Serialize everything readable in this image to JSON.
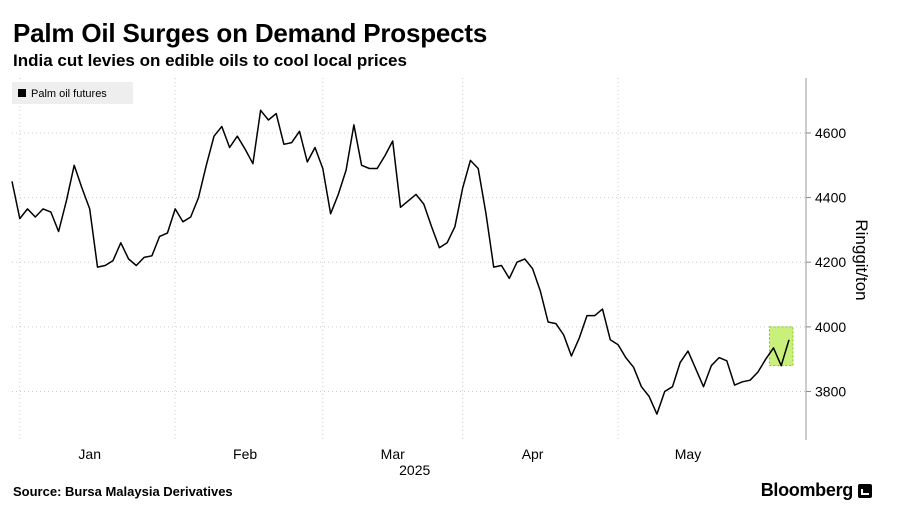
{
  "header": {
    "title": "Palm Oil Surges on Demand Prospects",
    "subtitle": "India cut levies on edible oils to cool local prices"
  },
  "footer": {
    "source": "Source: Bursa Malaysia Derivatives",
    "brand": "Bloomberg"
  },
  "colors": {
    "line": "#000000",
    "grid": "#cccccc",
    "highlight_fill": "#c8f07a",
    "highlight_border": "#7fc31c",
    "legend_bg": "#eeeeee"
  },
  "chart_data": {
    "type": "line",
    "title": "Palm Oil Surges on Demand Prospects",
    "subtitle": "India cut levies on edible oils to cool local prices",
    "ylabel": "Ringgit/ton",
    "ylim": [
      3650,
      4770
    ],
    "yticks": [
      3800,
      4000,
      4200,
      4400,
      4600
    ],
    "ytick_labels": [
      "3800",
      "4000",
      "4200",
      "4400",
      "4600"
    ],
    "xticks": [
      {
        "label": "Jan",
        "index": 10
      },
      {
        "label": "Feb",
        "index": 30
      },
      {
        "label": "Mar",
        "index": 49
      },
      {
        "label": "Apr",
        "index": 67
      },
      {
        "label": "May",
        "index": 87
      }
    ],
    "x_year_label": "2025",
    "legend": "top-left",
    "grid": "horizontal dotted",
    "series": [
      {
        "name": "Palm oil futures",
        "values": [
          4450,
          4335,
          4365,
          4340,
          4365,
          4355,
          4295,
          4390,
          4500,
          4430,
          4365,
          4185,
          4190,
          4205,
          4260,
          4210,
          4190,
          4215,
          4220,
          4280,
          4290,
          4365,
          4325,
          4340,
          4400,
          4500,
          4590,
          4620,
          4555,
          4590,
          4550,
          4505,
          4670,
          4640,
          4660,
          4565,
          4570,
          4605,
          4510,
          4555,
          4490,
          4350,
          4410,
          4485,
          4625,
          4500,
          4490,
          4490,
          4530,
          4575,
          4370,
          4390,
          4410,
          4380,
          4310,
          4245,
          4260,
          4310,
          4430,
          4515,
          4490,
          4350,
          4185,
          4190,
          4150,
          4200,
          4210,
          4180,
          4110,
          4015,
          4010,
          3975,
          3910,
          3965,
          4035,
          4035,
          4055,
          3960,
          3945,
          3905,
          3875,
          3815,
          3785,
          3730,
          3800,
          3815,
          3890,
          3925,
          3870,
          3815,
          3880,
          3905,
          3895,
          3820,
          3830,
          3835,
          3860,
          3900,
          3935,
          3880,
          3960
        ]
      }
    ],
    "highlight": {
      "from_index": 98,
      "to_index": 100,
      "y_range": [
        3880,
        4000
      ]
    }
  }
}
